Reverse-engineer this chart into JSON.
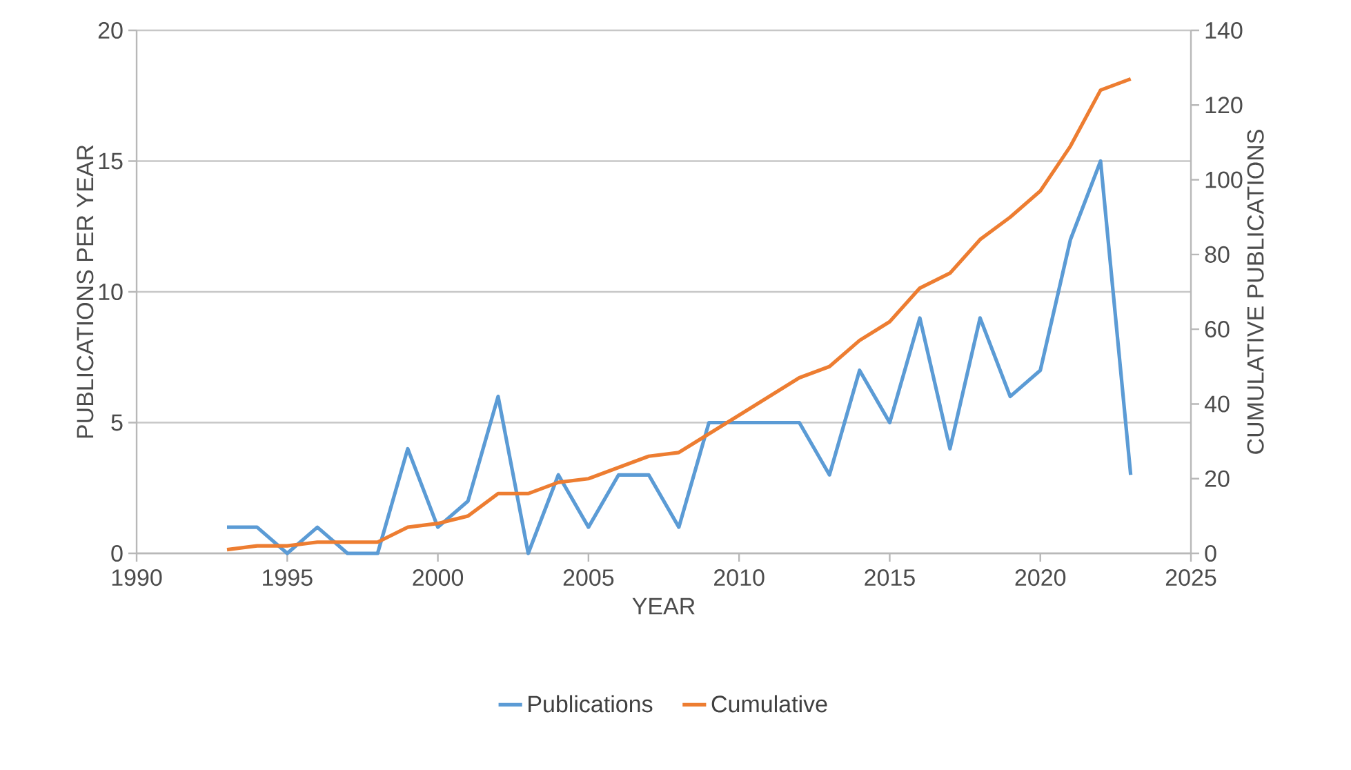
{
  "chart_data": {
    "type": "line",
    "xlabel": "YEAR",
    "ylabel": "PUBLICATIONS PER YEAR",
    "y2label": "CUMULATIVE PUBLICATIONS",
    "x": [
      1993,
      1994,
      1995,
      1996,
      1997,
      1998,
      1999,
      2000,
      2001,
      2002,
      2003,
      2004,
      2005,
      2006,
      2007,
      2008,
      2009,
      2010,
      2011,
      2012,
      2013,
      2014,
      2015,
      2016,
      2017,
      2018,
      2019,
      2020,
      2021,
      2022,
      2023
    ],
    "series": [
      {
        "name": "Publications",
        "color": "#5b9bd5",
        "values": [
          1,
          1,
          0,
          1,
          0,
          0,
          4,
          1,
          2,
          6,
          0,
          3,
          1,
          3,
          3,
          1,
          5,
          5,
          5,
          5,
          3,
          7,
          5,
          9,
          4,
          9,
          6,
          7,
          12,
          15,
          3
        ]
      },
      {
        "name": "Cumulative",
        "color": "#ed7d31",
        "axis": "y2",
        "values": [
          1,
          2,
          2,
          3,
          3,
          3,
          7,
          8,
          10,
          16,
          16,
          19,
          20,
          23,
          26,
          27,
          32,
          37,
          42,
          47,
          50,
          57,
          62,
          71,
          75,
          84,
          90,
          97,
          109,
          124,
          127
        ]
      }
    ],
    "xlim": [
      1990,
      2025
    ],
    "xticks": [
      1990,
      1995,
      2000,
      2005,
      2010,
      2015,
      2020,
      2025
    ],
    "ylim": [
      0,
      20
    ],
    "yticks": [
      0,
      5,
      10,
      15,
      20
    ],
    "y2lim": [
      0,
      140
    ],
    "y2ticks": [
      0,
      20,
      40,
      60,
      80,
      100,
      120,
      140
    ],
    "grid": "y",
    "legend": "bottom",
    "marker": "none",
    "line_style": "solid"
  }
}
